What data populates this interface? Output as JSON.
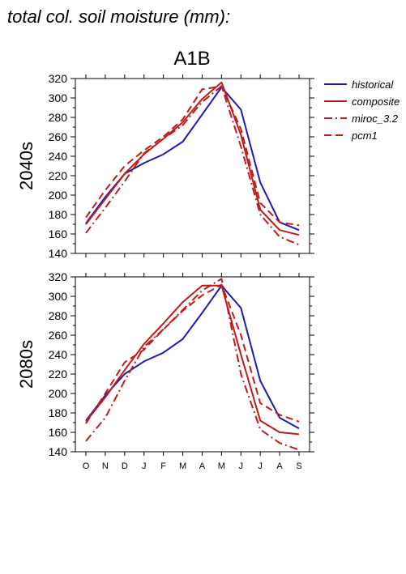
{
  "header_title": "total col. soil moisture (mm):",
  "scenario_title": "A1B",
  "legend": [
    {
      "label": "historical",
      "color": "#1a1ab4",
      "dash": "solid"
    },
    {
      "label": "composite",
      "color": "#c01a1a",
      "dash": "solid"
    },
    {
      "label": "miroc_3.2",
      "color": "#c01a1a",
      "dash": "dashdot"
    },
    {
      "label": "pcm1",
      "color": "#c01a1a",
      "dash": "dashed"
    }
  ],
  "chart_data": [
    {
      "type": "line",
      "panel_label": "2040s",
      "categories": [
        "O",
        "N",
        "D",
        "J",
        "F",
        "M",
        "A",
        "M",
        "J",
        "J",
        "A",
        "S"
      ],
      "ylim": [
        140,
        320
      ],
      "yticks": [
        140,
        160,
        180,
        200,
        220,
        240,
        260,
        280,
        300,
        320
      ],
      "series": [
        {
          "name": "historical",
          "values": [
            171,
            198,
            222,
            233,
            242,
            255,
            283,
            311,
            288,
            213,
            172,
            164
          ]
        },
        {
          "name": "composite",
          "values": [
            170,
            196,
            222,
            242,
            258,
            275,
            299,
            316,
            262,
            185,
            164,
            159
          ]
        },
        {
          "name": "miroc_3.2",
          "values": [
            161,
            187,
            214,
            243,
            258,
            272,
            296,
            312,
            250,
            180,
            157,
            149
          ]
        },
        {
          "name": "pcm1",
          "values": [
            177,
            205,
            230,
            246,
            260,
            278,
            309,
            312,
            268,
            192,
            172,
            169
          ]
        }
      ]
    },
    {
      "type": "line",
      "panel_label": "2080s",
      "categories": [
        "O",
        "N",
        "D",
        "J",
        "F",
        "M",
        "A",
        "M",
        "J",
        "J",
        "A",
        "S"
      ],
      "ylim": [
        140,
        320
      ],
      "yticks": [
        140,
        160,
        180,
        200,
        220,
        240,
        260,
        280,
        300,
        320
      ],
      "series": [
        {
          "name": "historical",
          "values": [
            172,
            198,
            220,
            233,
            242,
            256,
            283,
            311,
            288,
            213,
            175,
            164
          ]
        },
        {
          "name": "composite",
          "values": [
            171,
            196,
            224,
            251,
            272,
            294,
            311,
            311,
            240,
            172,
            160,
            158
          ]
        },
        {
          "name": "miroc_3.2",
          "values": [
            151,
            175,
            213,
            248,
            266,
            286,
            306,
            318,
            220,
            163,
            149,
            142
          ]
        },
        {
          "name": "pcm1",
          "values": [
            169,
            200,
            232,
            245,
            266,
            285,
            301,
            312,
            260,
            190,
            178,
            171
          ]
        }
      ]
    }
  ]
}
